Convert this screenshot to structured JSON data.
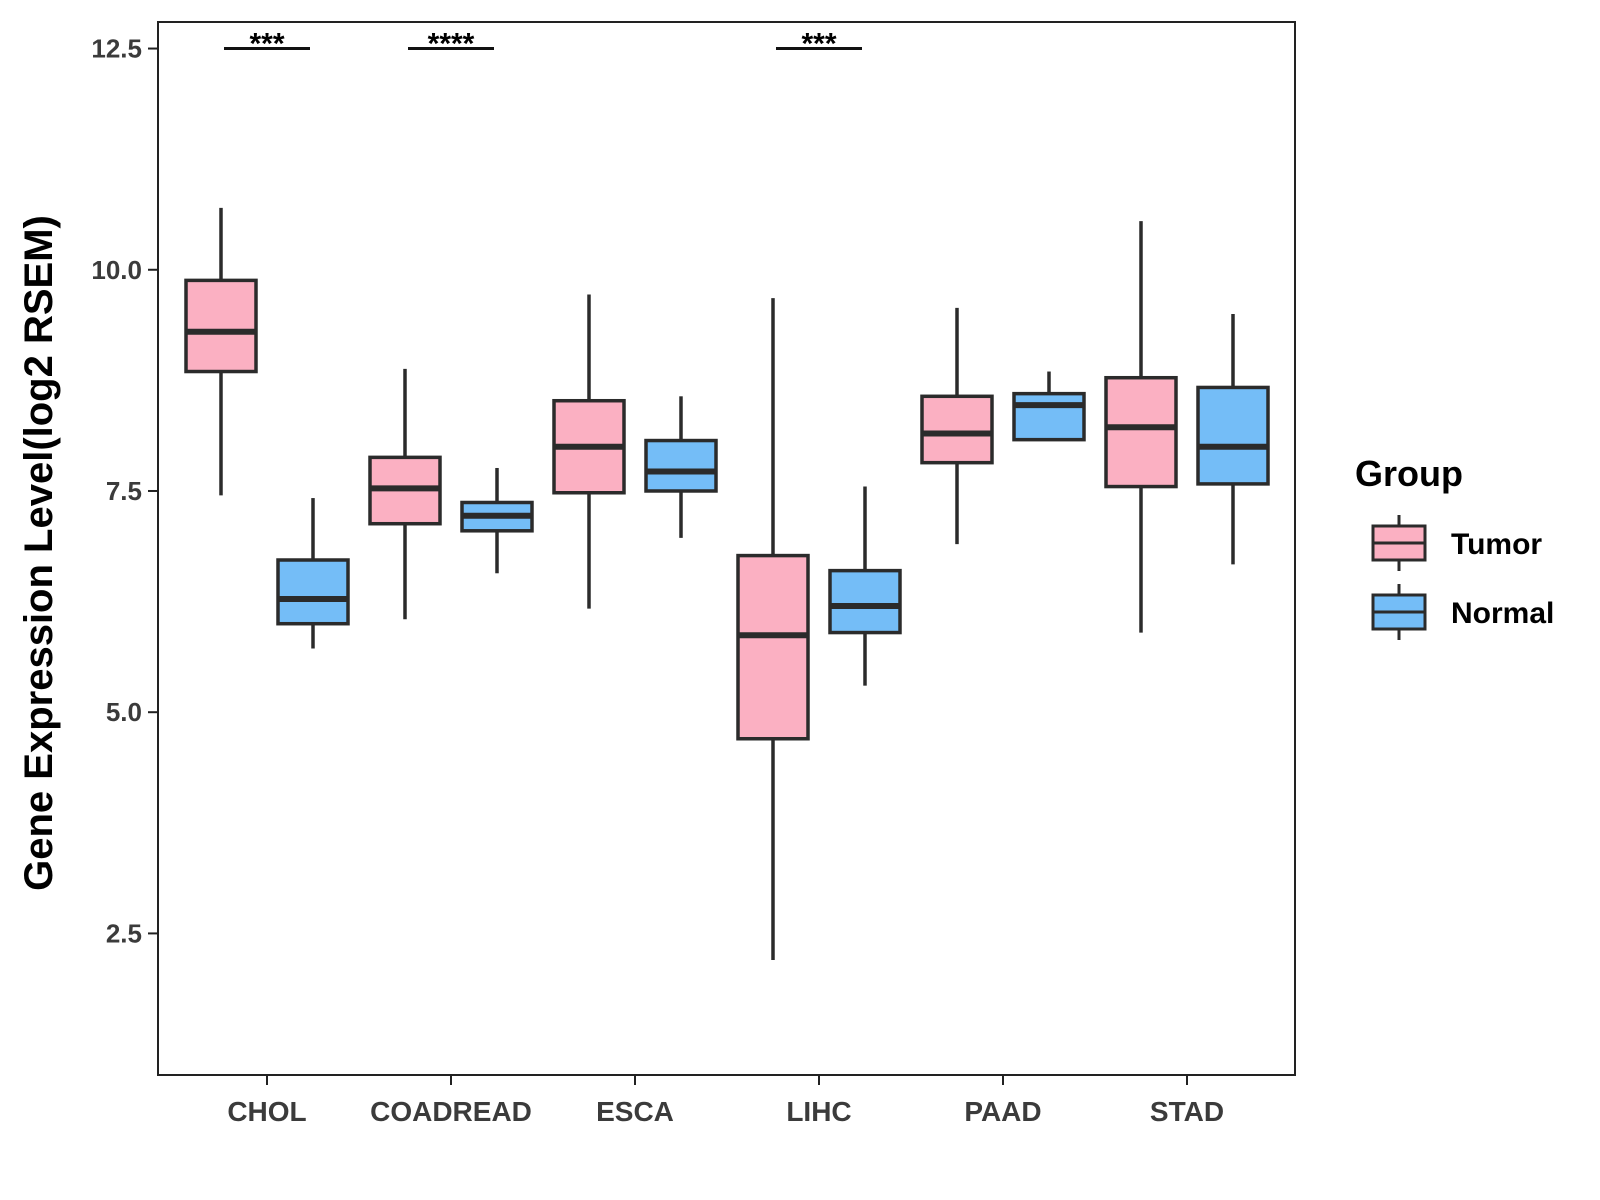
{
  "chart_data": {
    "type": "boxplot",
    "title": "",
    "xlabel": "",
    "ylabel": "Gene Expression Level(log2 RSEM)",
    "ylim": [
      0.9,
      12.8
    ],
    "yticks": [
      "2.5",
      "5.0",
      "7.5",
      "10.0",
      "12.5"
    ],
    "categories": [
      "CHOL",
      "COADREAD",
      "ESCA",
      "LIHC",
      "PAAD",
      "STAD"
    ],
    "legend": {
      "title": "Group",
      "position": "right",
      "entries": [
        "Tumor",
        "Normal"
      ]
    },
    "colors": {
      "Tumor": "#fbb0c2",
      "Normal": "#74bdf7",
      "outline": "#2b2b2b"
    },
    "series": [
      {
        "name": "Tumor",
        "boxes": [
          {
            "min": 7.45,
            "q1": 8.85,
            "median": 9.3,
            "q3": 9.88,
            "max": 10.7
          },
          {
            "min": 6.05,
            "q1": 7.13,
            "median": 7.53,
            "q3": 7.88,
            "max": 8.88
          },
          {
            "min": 6.17,
            "q1": 7.48,
            "median": 8.0,
            "q3": 8.52,
            "max": 9.72
          },
          {
            "min": 2.2,
            "q1": 4.7,
            "median": 5.87,
            "q3": 6.77,
            "max": 9.68
          },
          {
            "min": 6.9,
            "q1": 7.82,
            "median": 8.15,
            "q3": 8.57,
            "max": 9.57
          },
          {
            "min": 5.9,
            "q1": 7.55,
            "median": 8.22,
            "q3": 8.78,
            "max": 10.55
          }
        ]
      },
      {
        "name": "Normal",
        "boxes": [
          {
            "min": 5.72,
            "q1": 6.0,
            "median": 6.28,
            "q3": 6.72,
            "max": 7.42
          },
          {
            "min": 6.57,
            "q1": 7.05,
            "median": 7.22,
            "q3": 7.37,
            "max": 7.76
          },
          {
            "min": 6.97,
            "q1": 7.5,
            "median": 7.72,
            "q3": 8.07,
            "max": 8.57
          },
          {
            "min": 5.3,
            "q1": 5.9,
            "median": 6.2,
            "q3": 6.6,
            "max": 7.55
          },
          {
            "min": 8.08,
            "q1": 8.08,
            "median": 8.47,
            "q3": 8.6,
            "max": 8.85
          },
          {
            "min": 6.67,
            "q1": 7.58,
            "median": 8.0,
            "q3": 8.67,
            "max": 9.5
          }
        ]
      }
    ],
    "annotations": [
      {
        "category": "CHOL",
        "label": "***",
        "y": 12.5
      },
      {
        "category": "COADREAD",
        "label": "****",
        "y": 12.5
      },
      {
        "category": "LIHC",
        "label": "***",
        "y": 12.5
      }
    ]
  }
}
